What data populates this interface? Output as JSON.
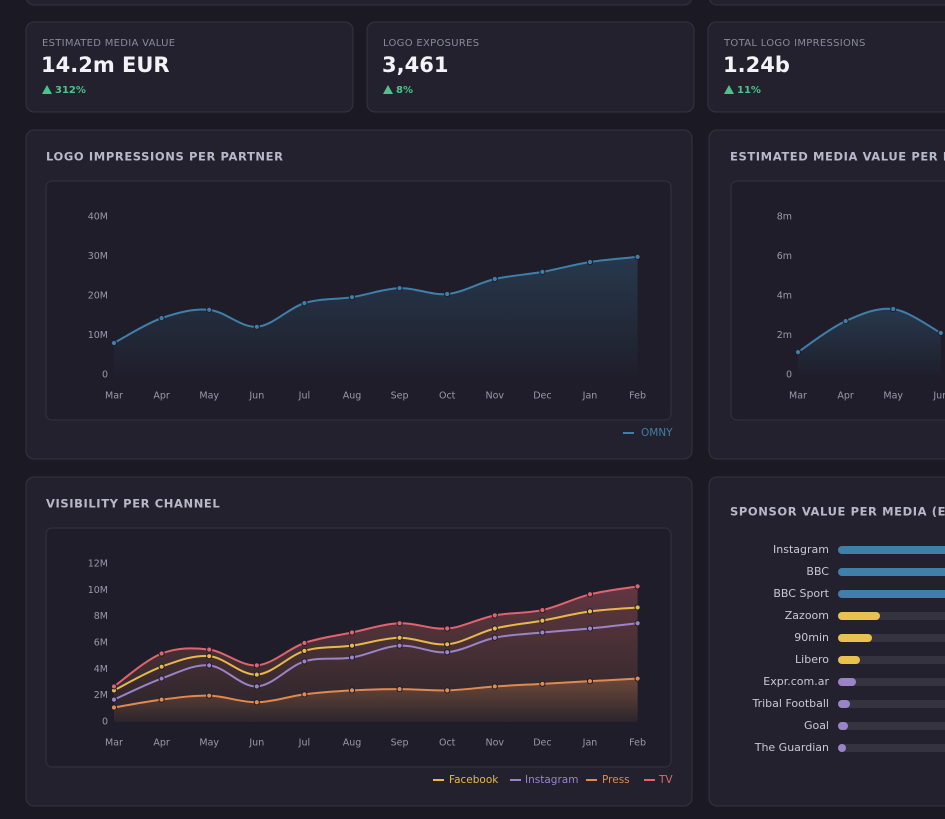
{
  "kpis": [
    {
      "label": "ESTIMATED MEDIA VALUE",
      "value": "14.2m EUR",
      "change": "312%"
    },
    {
      "label": "LOGO EXPOSURES",
      "value": "3,461",
      "change": "8%"
    },
    {
      "label": "TOTAL LOGO IMPRESSIONS",
      "value": "1.24b",
      "change": "11%"
    }
  ],
  "chart_data": [
    {
      "type": "line",
      "title": "LOGO IMPRESSIONS PER PARTNER",
      "categories": [
        "Mar",
        "Apr",
        "May",
        "Jun",
        "Jul",
        "Aug",
        "Sep",
        "Oct",
        "Nov",
        "Dec",
        "Jan",
        "Feb"
      ],
      "series": [
        {
          "name": "OMNY",
          "color": "#3f7fa9",
          "values": [
            8.1,
            14.4,
            16.5,
            12.2,
            18.2,
            19.7,
            22.0,
            20.5,
            24.3,
            26.1,
            28.6,
            29.9
          ]
        }
      ],
      "ylim": [
        0,
        40
      ],
      "yticks": [
        {
          "value": 0,
          "label": "0"
        },
        {
          "value": 10,
          "label": "10M"
        },
        {
          "value": 20,
          "label": "20M"
        },
        {
          "value": 30,
          "label": "30M"
        },
        {
          "value": 40,
          "label": "40M"
        }
      ]
    },
    {
      "type": "line",
      "title": "ESTIMATED MEDIA VALUE PER PARTNER",
      "categories": [
        "Mar",
        "Apr",
        "May",
        "Jun"
      ],
      "series": [
        {
          "color": "#3f7fa9",
          "values": [
            1.16,
            2.73,
            3.34,
            2.13
          ]
        }
      ],
      "ylim": [
        0,
        8
      ],
      "yticks": [
        {
          "value": 0,
          "label": "0"
        },
        {
          "value": 2,
          "label": "2m"
        },
        {
          "value": 4,
          "label": "4m"
        },
        {
          "value": 6,
          "label": "6m"
        },
        {
          "value": 8,
          "label": "8m"
        }
      ]
    },
    {
      "type": "line",
      "title": "VISIBILITY PER CHANNEL",
      "categories": [
        "Mar",
        "Apr",
        "May",
        "Jun",
        "Jul",
        "Aug",
        "Sep",
        "Oct",
        "Nov",
        "Dec",
        "Jan",
        "Feb"
      ],
      "series": [
        {
          "name": "Facebook",
          "color": "#e8b84a",
          "values": [
            2.4,
            4.2,
            5.0,
            3.6,
            5.4,
            5.8,
            6.4,
            5.9,
            7.1,
            7.7,
            8.4,
            8.7
          ]
        },
        {
          "name": "Instagram",
          "color": "#9b83c7",
          "values": [
            1.7,
            3.3,
            4.3,
            2.7,
            4.6,
            4.9,
            5.8,
            5.3,
            6.4,
            6.8,
            7.1,
            7.5
          ]
        },
        {
          "name": "Press",
          "color": "#e08a4f",
          "values": [
            1.1,
            1.7,
            2.0,
            1.5,
            2.1,
            2.4,
            2.5,
            2.4,
            2.7,
            2.9,
            3.1,
            3.3
          ]
        },
        {
          "name": "TV",
          "color": "#e06470",
          "values": [
            2.7,
            5.2,
            5.5,
            4.3,
            6.0,
            6.8,
            7.5,
            7.1,
            8.1,
            8.5,
            9.7,
            10.3
          ]
        }
      ],
      "ylim": [
        0,
        12
      ],
      "yticks": [
        {
          "value": 0,
          "label": "0"
        },
        {
          "value": 2,
          "label": "2M"
        },
        {
          "value": 4,
          "label": "4M"
        },
        {
          "value": 6,
          "label": "6M"
        },
        {
          "value": 8,
          "label": "8M"
        },
        {
          "value": 10,
          "label": "10M"
        },
        {
          "value": 12,
          "label": "12M"
        }
      ]
    },
    {
      "type": "hbar",
      "title": "SPONSOR VALUE PER MEDIA (EUR)",
      "categories": [
        "Instagram",
        "BBC",
        "BBC Sport",
        "Zazoom",
        "90min",
        "Libero",
        "Expr.com.ar",
        "Tribal Football",
        "Goal",
        "The Guardian"
      ],
      "values": [
        90,
        75,
        62,
        21,
        17,
        11,
        9,
        6,
        5,
        4
      ],
      "colors": [
        "#3f7fa9",
        "#3f7fa9",
        "#3f7fa9",
        "#e8c14f",
        "#e8c14f",
        "#e8c14f",
        "#9b83c7",
        "#9b83c7",
        "#9b83c7",
        "#9b83c7"
      ],
      "xlim": [
        0,
        100
      ]
    }
  ]
}
